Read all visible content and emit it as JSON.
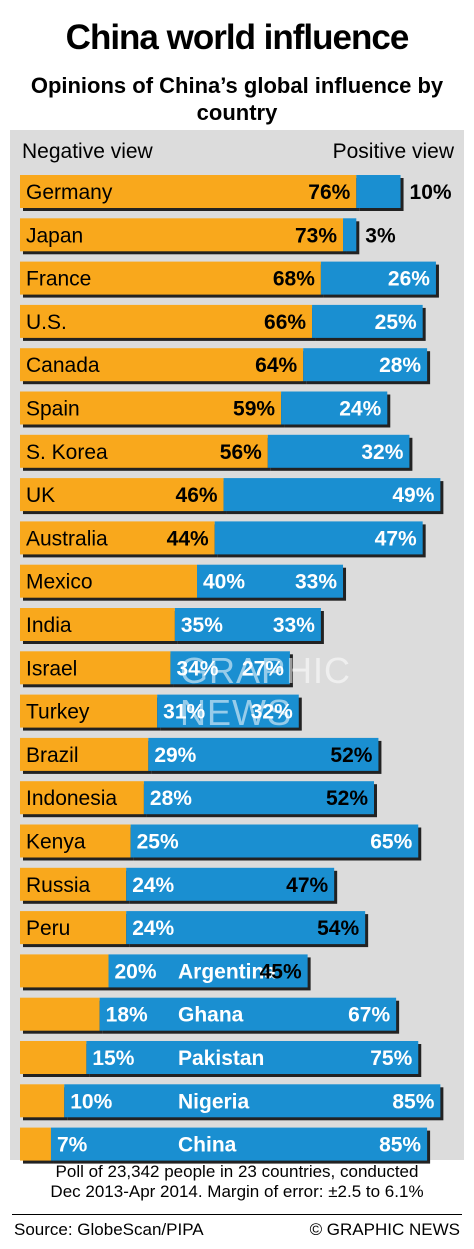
{
  "chart_data": {
    "type": "bar",
    "title": "China world influence",
    "subtitle": "Opinions of China’s global influence by country",
    "legend": {
      "negative": "Negative view",
      "positive": "Positive view"
    },
    "unit": "%",
    "categories": [
      "Germany",
      "Japan",
      "France",
      "U.S.",
      "Canada",
      "Spain",
      "S. Korea",
      "UK",
      "Australia",
      "Mexico",
      "India",
      "Israel",
      "Turkey",
      "Brazil",
      "Indonesia",
      "Kenya",
      "Russia",
      "Peru",
      "Argentina",
      "Ghana",
      "Pakistan",
      "Nigeria",
      "China"
    ],
    "series": [
      {
        "name": "Negative view",
        "color": "#f9a81c",
        "values": [
          76,
          73,
          68,
          66,
          64,
          59,
          56,
          46,
          44,
          40,
          35,
          34,
          31,
          29,
          28,
          25,
          24,
          24,
          20,
          18,
          15,
          10,
          7
        ]
      },
      {
        "name": "Positive view",
        "color": "#1a8fd1",
        "values": [
          10,
          3,
          26,
          25,
          28,
          24,
          32,
          49,
          47,
          33,
          33,
          27,
          32,
          52,
          52,
          65,
          47,
          54,
          45,
          67,
          75,
          85,
          85
        ]
      }
    ],
    "source": "Source: GlobeScan/PIPA",
    "credit": "© GRAPHIC NEWS",
    "footnote": [
      "Poll of 23,342 people in 23 countries, conducted",
      "Dec 2013-Apr 2014. Margin of error: ±2.5 to 6.1%"
    ],
    "watermark": "GRAPHIC NEWS"
  }
}
